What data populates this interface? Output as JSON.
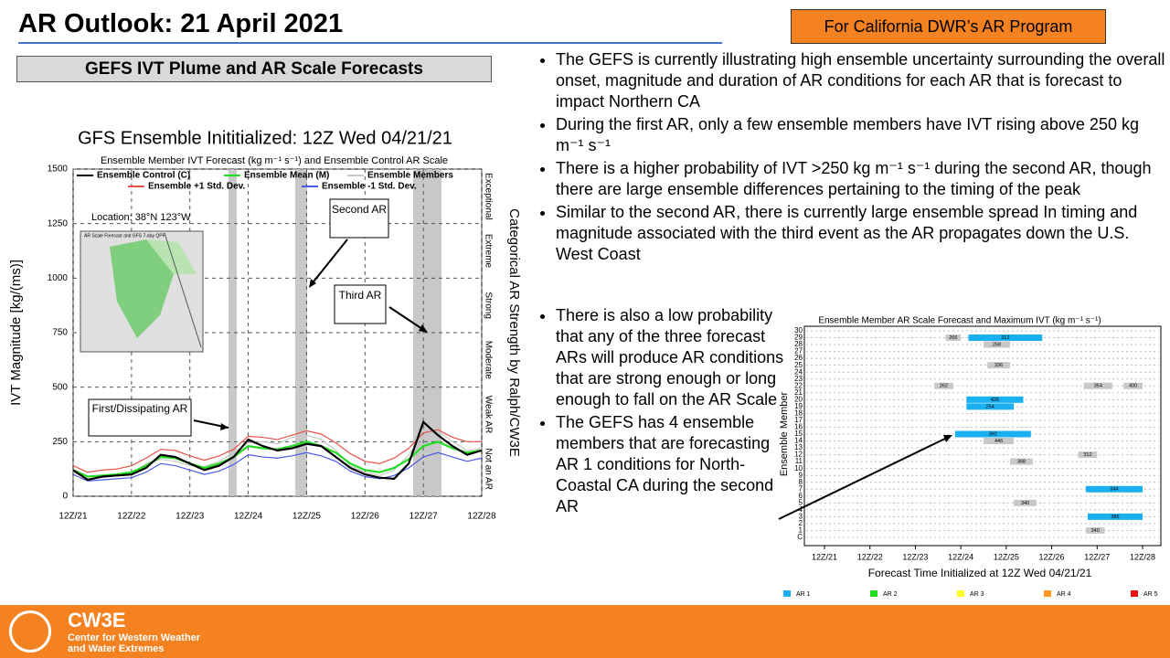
{
  "header": {
    "title": "AR Outlook: 21 April 2021",
    "badge": "For California DWR’s AR Program",
    "subtitle": "GEFS IVT Plume and AR Scale Forecasts"
  },
  "bullets": [
    "The GEFS is currently illustrating high ensemble uncertainty surrounding the overall onset, magnitude and duration of AR conditions for each AR that is forecast to impact Northern CA",
    "During the first AR, only a few ensemble members have IVT rising above 250 kg m⁻¹ s⁻¹",
    "There is a higher probability of IVT >250 kg m⁻¹ s⁻¹ during the second AR, though there are large ensemble differences pertaining to the timing of the peak",
    "Similar to the second AR, there is currently large ensemble spread In timing and magnitude associated with the third event as the AR propagates down the U.S. West Coast",
    "There is also a low probability that any of the three forecast ARs will produce AR conditions that are strong enough or long enough to fall on the AR Scale",
    "The GEFS has 4 ensemble members that are forecasting AR 1 conditions for North-Coastal CA during the second AR"
  ],
  "footer": {
    "logo": "CW3E",
    "name": "Center for Western Weather and Water Extremes"
  },
  "chart_data": [
    {
      "type": "line",
      "figure_title": "GFS Ensemble Inititialized: 12Z Wed 04/21/21",
      "title": "Ensemble Member IVT Forecast (kg m⁻¹ s⁻¹) and Ensemble Control AR Scale",
      "y_label": "IVT Magnitude [kg/(ms)]",
      "y2_label": "Categorical AR Strength by Ralph/CW3E",
      "y2_categories": [
        "Not an AR",
        "Weak AR",
        "Moderate",
        "Strong",
        "Extreme",
        "Exceptional"
      ],
      "location": "Location: 38°N 123°W",
      "inset_title": "AR Scale Forecast and GFS 7-day QPF",
      "annotations": [
        "First/Dissipating AR",
        "Second AR",
        "Third AR"
      ],
      "x": [
        0,
        6,
        12,
        18,
        24,
        30,
        36,
        42,
        48,
        54,
        60,
        66,
        72,
        78,
        84,
        90,
        96,
        102,
        108,
        114,
        120,
        126,
        132,
        138,
        144,
        150,
        156,
        162,
        168
      ],
      "xlim": [
        0,
        168
      ],
      "xticks": [
        {
          "value": 0,
          "label": "12Z/21"
        },
        {
          "value": 24,
          "label": "12Z/22"
        },
        {
          "value": 48,
          "label": "12Z/23"
        },
        {
          "value": 72,
          "label": "12Z/24"
        },
        {
          "value": 96,
          "label": "12Z/25"
        },
        {
          "value": 120,
          "label": "12Z/26"
        },
        {
          "value": 144,
          "label": "12Z/27"
        },
        {
          "value": 168,
          "label": "12Z/28"
        }
      ],
      "ylim": [
        0,
        1500
      ],
      "yticks": [
        0,
        250,
        500,
        750,
        1000,
        1250,
        1500
      ],
      "grid": true,
      "series": [
        {
          "name": "Ensemble Members",
          "color": "#c8c8c8",
          "values": [
            110,
            80,
            85,
            95,
            105,
            150,
            170,
            160,
            140,
            135,
            160,
            200,
            245,
            250,
            240,
            270,
            280,
            260,
            210,
            140,
            110,
            95,
            120,
            190,
            280,
            300,
            250,
            210,
            220
          ]
        },
        {
          "name": "Ensemble +1 Std. Dev.",
          "color": "#e8504a",
          "values": [
            140,
            110,
            120,
            125,
            140,
            175,
            215,
            210,
            185,
            165,
            185,
            215,
            275,
            270,
            260,
            280,
            300,
            285,
            245,
            195,
            160,
            150,
            175,
            220,
            290,
            305,
            270,
            250,
            250
          ]
        },
        {
          "name": "Ensemble -1 Std. Dev.",
          "color": "#4a5ae8",
          "values": [
            100,
            70,
            75,
            80,
            85,
            110,
            150,
            140,
            120,
            100,
            115,
            145,
            190,
            180,
            175,
            185,
            200,
            185,
            160,
            115,
            90,
            80,
            95,
            130,
            180,
            200,
            180,
            160,
            175
          ]
        },
        {
          "name": "Ensemble Mean (M)",
          "color": "#22dd22",
          "values": [
            120,
            90,
            95,
            100,
            110,
            140,
            180,
            175,
            150,
            130,
            150,
            180,
            230,
            220,
            215,
            230,
            250,
            230,
            200,
            150,
            120,
            110,
            130,
            170,
            230,
            250,
            220,
            200,
            210
          ]
        },
        {
          "name": "Ensemble Control (C)",
          "color": "#000000",
          "values": [
            120,
            75,
            90,
            95,
            100,
            130,
            190,
            180,
            150,
            120,
            140,
            180,
            260,
            230,
            210,
            220,
            240,
            230,
            180,
            130,
            100,
            85,
            80,
            150,
            340,
            280,
            230,
            190,
            210
          ]
        }
      ]
    },
    {
      "type": "timeline",
      "title": "Ensemble Member AR Scale Forecast and Maximum IVT (kg m⁻¹ s⁻¹)",
      "x_label": "Forecast Time Initialized at 12Z Wed 04/21/21",
      "y_label": "Ensemble Member",
      "categories": [
        "C",
        "1",
        "2",
        "3",
        "4",
        "5",
        "6",
        "7",
        "8",
        "9",
        "10",
        "11",
        "12",
        "13",
        "14",
        "15",
        "16",
        "17",
        "18",
        "19",
        "20",
        "21",
        "22",
        "23",
        "24",
        "25",
        "26",
        "27",
        "28",
        "29",
        "30"
      ],
      "xlim": [
        0,
        168
      ],
      "xticks": [
        {
          "value": 0,
          "label": "12Z/21"
        },
        {
          "value": 24,
          "label": "12Z/22"
        },
        {
          "value": 48,
          "label": "12Z/23"
        },
        {
          "value": 72,
          "label": "12Z/24"
        },
        {
          "value": 96,
          "label": "12Z/25"
        },
        {
          "value": 120,
          "label": "12Z/26"
        },
        {
          "value": 144,
          "label": "12Z/27"
        },
        {
          "value": 168,
          "label": "12Z/28"
        }
      ],
      "bars": [
        {
          "member": "29",
          "start": 76,
          "end": 115,
          "value": 312,
          "color": "#1ab0ef"
        },
        {
          "member": "29",
          "start": 64,
          "end": 72,
          "value": 266,
          "color": "#c8c8c8"
        },
        {
          "member": "28",
          "start": 84,
          "end": 98,
          "value": 258,
          "color": "#c8c8c8"
        },
        {
          "member": "25",
          "start": 86,
          "end": 98,
          "value": 336,
          "color": "#c8c8c8"
        },
        {
          "member": "22",
          "start": 58,
          "end": 68,
          "value": 262,
          "color": "#c8c8c8"
        },
        {
          "member": "22",
          "start": 137,
          "end": 152,
          "value": 354,
          "color": "#c8c8c8"
        },
        {
          "member": "22",
          "start": 158,
          "end": 168,
          "value": 400,
          "color": "#c8c8c8"
        },
        {
          "member": "20",
          "start": 75,
          "end": 105,
          "value": 426,
          "color": "#1ab0ef"
        },
        {
          "member": "19",
          "start": 75,
          "end": 100,
          "value": 254,
          "color": "#1ab0ef"
        },
        {
          "member": "15",
          "start": 69,
          "end": 109,
          "value": 392,
          "color": "#1ab0ef"
        },
        {
          "member": "14",
          "start": 84,
          "end": 100,
          "value": 446,
          "color": "#c8c8c8"
        },
        {
          "member": "12",
          "start": 134,
          "end": 144,
          "value": 312,
          "color": "#c8c8c8"
        },
        {
          "member": "11",
          "start": 98,
          "end": 110,
          "value": 368,
          "color": "#c8c8c8"
        },
        {
          "member": "7",
          "start": 138,
          "end": 168,
          "value": 344,
          "color": "#1ab0ef"
        },
        {
          "member": "5",
          "start": 100,
          "end": 112,
          "value": 340,
          "color": "#c8c8c8"
        },
        {
          "member": "3",
          "start": 139,
          "end": 168,
          "value": 386,
          "color": "#1ab0ef"
        },
        {
          "member": "1",
          "start": 138,
          "end": 148,
          "value": 340,
          "color": "#c8c8c8"
        }
      ],
      "series": [
        {
          "name": "AR 1",
          "color": "#1ab0ef"
        },
        {
          "name": "AR 2",
          "color": "#22dd22"
        },
        {
          "name": "AR 3",
          "color": "#ffff22"
        },
        {
          "name": "AR 4",
          "color": "#ff9922"
        },
        {
          "name": "AR 5",
          "color": "#ee1111"
        }
      ]
    }
  ]
}
